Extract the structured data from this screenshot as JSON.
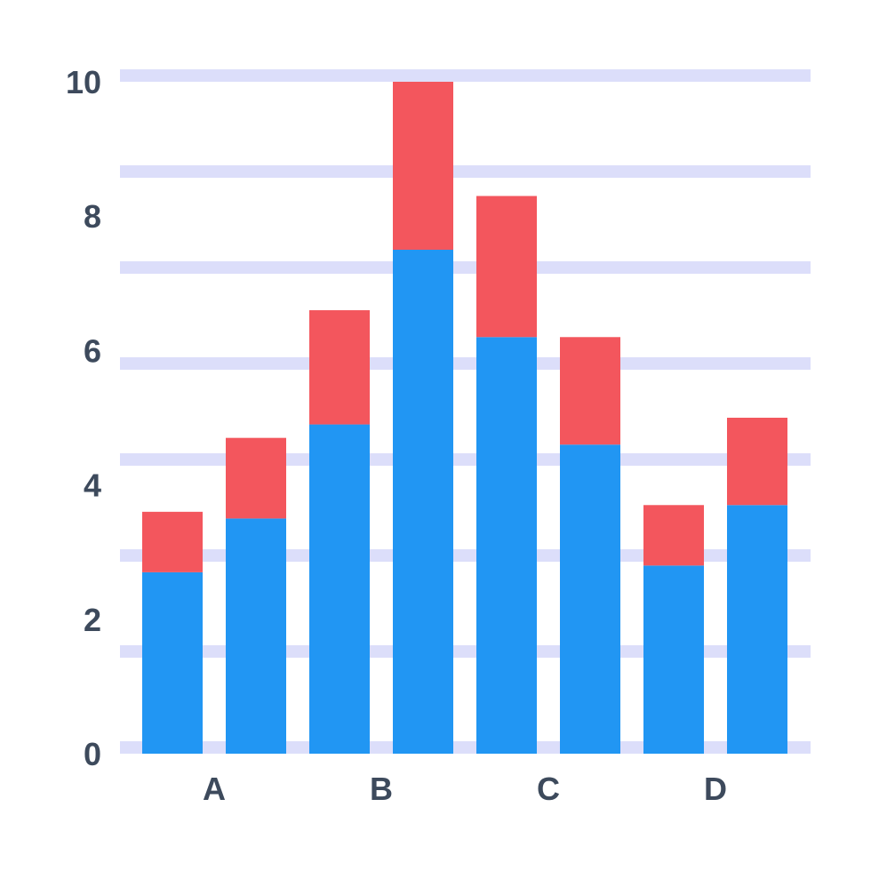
{
  "chart_data": {
    "type": "bar",
    "stacked": true,
    "title": "",
    "xlabel": "",
    "ylabel": "",
    "ylim": [
      0,
      10
    ],
    "y_ticks": [
      "0",
      "2",
      "4",
      "6",
      "8",
      "10"
    ],
    "group_labels": [
      "A",
      "B",
      "C",
      "D"
    ],
    "bars_per_group": 2,
    "series": [
      {
        "values": [
          2.7,
          3.5,
          4.9,
          7.5,
          6.2,
          4.6,
          2.8,
          3.7
        ]
      },
      {
        "values": [
          0.9,
          1.2,
          1.7,
          2.5,
          2.1,
          1.6,
          0.9,
          1.3
        ]
      }
    ],
    "grid": true,
    "legend": "none",
    "colors": {
      "series": [
        "#2196f3",
        "#f3565d"
      ],
      "grid": "#dcdefa",
      "text": "#3d4a5c"
    }
  }
}
